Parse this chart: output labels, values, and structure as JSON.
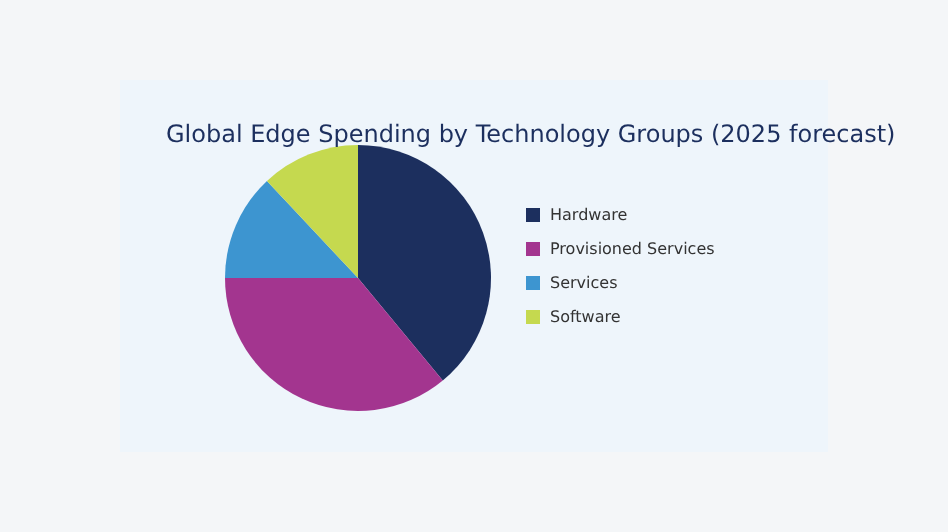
{
  "chart_data": {
    "type": "pie",
    "title": "Global Edge Spending by Technology Groups (2025 forecast)",
    "categories": [
      "Hardware",
      "Provisioned Services",
      "Services",
      "Software"
    ],
    "values": [
      39,
      36,
      13,
      12
    ],
    "colors": [
      "#1c2f5e",
      "#a3358f",
      "#3d95d0",
      "#c5d94f"
    ],
    "legend": "right"
  }
}
